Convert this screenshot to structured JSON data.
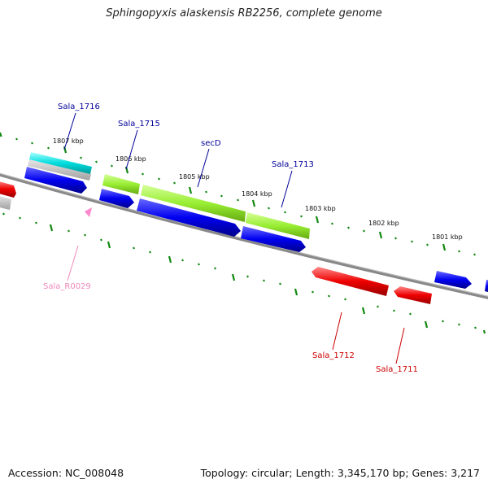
{
  "title": "Sphingopyxis alaskensis RB2256, complete genome",
  "footer": {
    "accession": "Accession: NC_008048",
    "stats": "Topology: circular; Length: 3,345,170 bp; Genes: 3,217"
  },
  "colors": {
    "cds": "#0000ff",
    "cds_reverse": "#ff0000",
    "gene_forward": "#00dddd",
    "orf": "#99ee33",
    "rna": "#ff88cc",
    "backbone": "#888888",
    "tick": "#118811",
    "label_forward": "#000099",
    "label_reverse": "#cc0000",
    "label_rna": "#ee88bb"
  },
  "kbp_labels": [
    {
      "text": "1807 kbp"
    },
    {
      "text": "1806 kbp"
    },
    {
      "text": "1805 kbp"
    },
    {
      "text": "1804 kbp"
    },
    {
      "text": "1803 kbp"
    },
    {
      "text": "1802 kbp"
    },
    {
      "text": "1801 kbp"
    }
  ],
  "genes": [
    {
      "name": "Sala_1716",
      "strand": "forward"
    },
    {
      "name": "Sala_1715",
      "strand": "forward"
    },
    {
      "name": "secD",
      "strand": "forward"
    },
    {
      "name": "Sala_1713",
      "strand": "forward"
    },
    {
      "name": "Sala_R0029",
      "strand": "reverse",
      "type": "rna"
    },
    {
      "name": "Sala_1712",
      "strand": "reverse"
    },
    {
      "name": "Sala_1711",
      "strand": "reverse"
    }
  ]
}
